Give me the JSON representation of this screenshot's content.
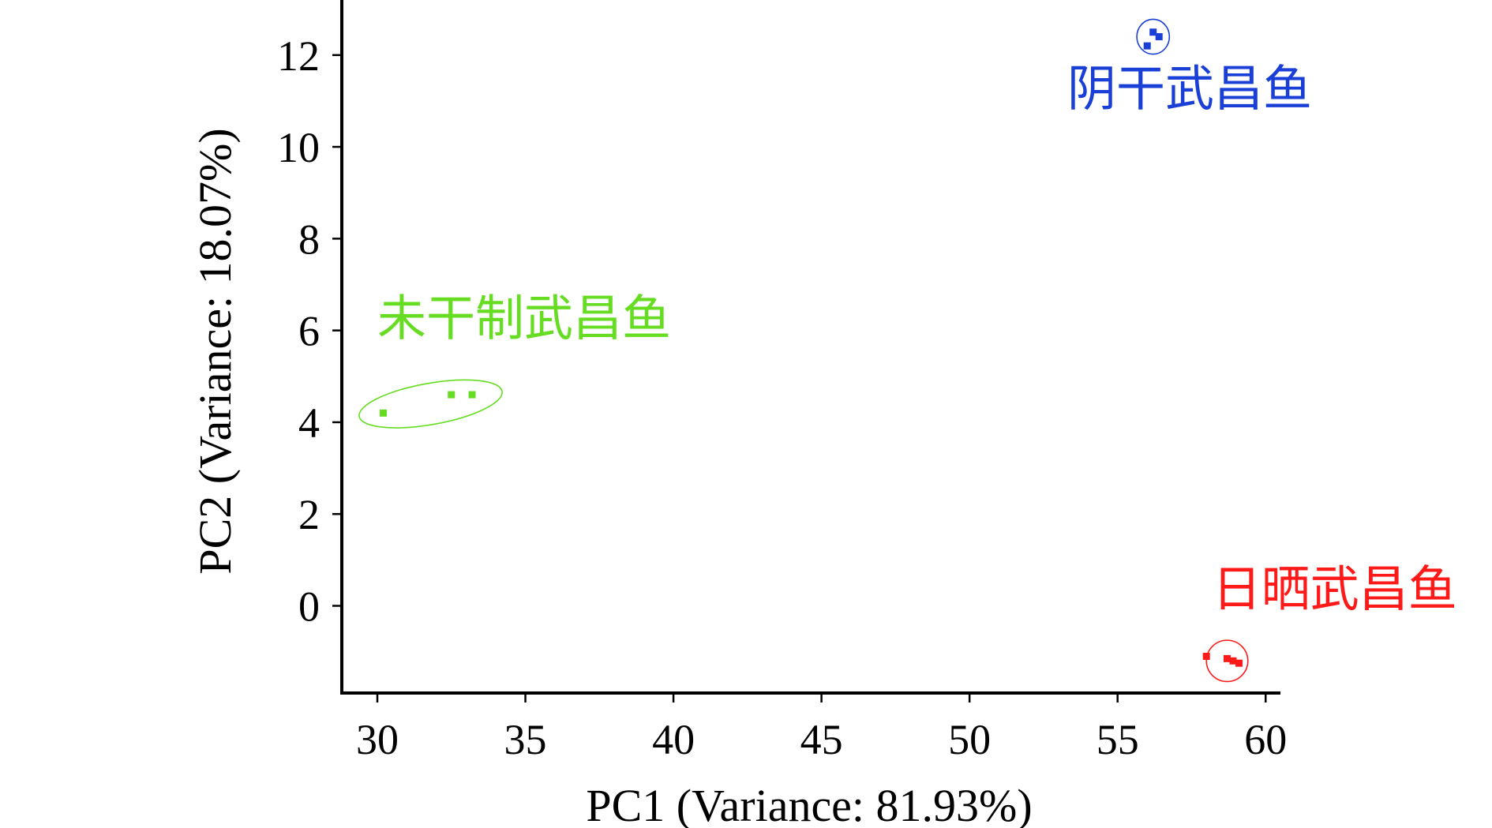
{
  "chart_data": {
    "type": "scatter",
    "xlabel": "PC1 (Variance: 81.93%)",
    "ylabel": "PC2 (Variance: 18.07%)",
    "xlim": [
      28.8,
      60.5
    ],
    "ylim": [
      -1.9,
      13.2
    ],
    "xticks": [
      30,
      35,
      40,
      45,
      50,
      55,
      60
    ],
    "yticks": [
      0,
      2,
      4,
      6,
      8,
      10,
      12
    ],
    "series": [
      {
        "name": "阴干武昌鱼",
        "color": "#1a3fd6",
        "points": [
          [
            56.0,
            12.2
          ],
          [
            56.2,
            12.5
          ],
          [
            56.4,
            12.4
          ]
        ],
        "ellipse": {
          "cx": 56.2,
          "cy": 12.4,
          "rx": 0.55,
          "ry": 0.38,
          "angle": 0
        },
        "label_anchor": [
          53.3,
          10.9
        ]
      },
      {
        "name": "未干制武昌鱼",
        "color": "#66dd22",
        "points": [
          [
            30.2,
            4.2
          ],
          [
            32.5,
            4.6
          ],
          [
            33.2,
            4.6
          ]
        ],
        "ellipse": {
          "cx": 31.8,
          "cy": 4.4,
          "rx": 2.45,
          "ry": 0.45,
          "angle": -10
        },
        "label_anchor": [
          30.0,
          5.9
        ]
      },
      {
        "name": "日晒武昌鱼",
        "color": "#ff1a1a",
        "points": [
          [
            58.0,
            -1.1
          ],
          [
            58.7,
            -1.15
          ],
          [
            58.9,
            -1.2
          ],
          [
            59.1,
            -1.25
          ]
        ],
        "ellipse": {
          "cx": 58.7,
          "cy": -1.2,
          "rx": 0.7,
          "ry": 0.45,
          "angle": 0
        },
        "label_anchor": [
          58.2,
          0.0
        ]
      }
    ]
  }
}
